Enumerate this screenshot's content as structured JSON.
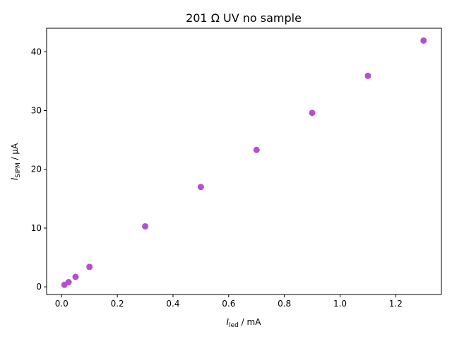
{
  "chart_data": {
    "type": "scatter",
    "title": "201 Ω UV no sample",
    "xlabel": {
      "symbol": "I",
      "subscript": "led",
      "unit": " / mA"
    },
    "ylabel": {
      "symbol": "I",
      "subscript": "SiPM",
      "unit": " / μA"
    },
    "xlim": [
      -0.054,
      1.364
    ],
    "ylim": [
      -1.3,
      44.0
    ],
    "xticks": [
      0.0,
      0.2,
      0.4,
      0.6,
      0.8,
      1.0,
      1.2
    ],
    "xtick_labels": [
      "0.0",
      "0.2",
      "0.4",
      "0.6",
      "0.8",
      "1.0",
      "1.2"
    ],
    "yticks": [
      0,
      10,
      20,
      30,
      40
    ],
    "ytick_labels": [
      "0",
      "10",
      "20",
      "30",
      "40"
    ],
    "grid": false,
    "marker_color": "#b44fd1",
    "x": [
      0.01,
      0.025,
      0.05,
      0.1,
      0.3,
      0.5,
      0.7,
      0.9,
      1.1,
      1.3
    ],
    "y": [
      0.35,
      0.8,
      1.7,
      3.4,
      10.3,
      17.0,
      23.3,
      29.6,
      35.9,
      41.9
    ]
  }
}
